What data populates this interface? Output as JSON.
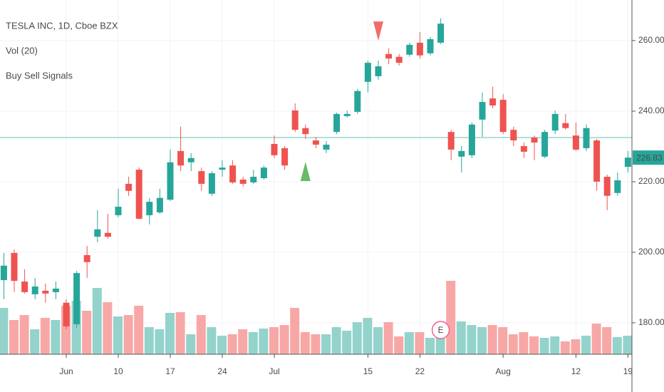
{
  "chart_data": {
    "type": "candlestick",
    "title": "TESLA INC, 1D, Cboe BZX",
    "volume_title": "Vol (20)",
    "signals_title": "Buy Sell Signals",
    "categories": [
      null,
      null,
      null,
      null,
      null,
      null,
      "Jun",
      null,
      null,
      null,
      null,
      "10",
      null,
      null,
      null,
      null,
      "17",
      null,
      null,
      null,
      null,
      "24",
      null,
      null,
      null,
      null,
      "Jul",
      null,
      null,
      null,
      null,
      null,
      null,
      null,
      null,
      "15",
      null,
      null,
      null,
      null,
      "22",
      null,
      null,
      null,
      null,
      null,
      null,
      null,
      "Aug",
      null,
      null,
      null,
      null,
      null,
      null,
      "12",
      null,
      null,
      null,
      null,
      "19"
    ],
    "open": [
      192.1,
      199.8,
      191.7,
      188.1,
      189.1,
      188.7,
      185.7,
      179.6,
      199.2,
      204.4,
      205.5,
      210.5,
      219.4,
      223.4,
      210.5,
      211.3,
      214.9,
      228.7,
      225.5,
      223.0,
      216.6,
      223.4,
      224.6,
      220.6,
      219.8,
      221.0,
      230.7,
      229.5,
      240.2,
      235.2,
      231.7,
      229.1,
      234.1,
      238.6,
      239.8,
      248.3,
      249.9,
      256.2,
      255.4,
      256.0,
      259.4,
      256.4,
      259.4,
      234.1,
      227.1,
      227.5,
      237.6,
      243.6,
      243.2,
      234.7,
      230.1,
      232.5,
      227.1,
      234.5,
      236.6,
      233.1,
      229.5,
      231.7,
      221.4,
      216.8,
      224.2
    ],
    "high": [
      199.8,
      200.8,
      195.2,
      192.7,
      191.1,
      191.7,
      186.7,
      194.7,
      201.8,
      211.9,
      210.9,
      218.0,
      221.4,
      224.0,
      215.4,
      218.0,
      229.1,
      235.6,
      228.1,
      224.0,
      223.0,
      226.1,
      226.1,
      221.4,
      223.4,
      224.6,
      233.1,
      230.1,
      242.2,
      236.2,
      232.7,
      231.5,
      239.6,
      240.2,
      246.3,
      254.3,
      254.3,
      257.8,
      256.2,
      259.4,
      262.4,
      261.0,
      266.3,
      234.7,
      230.1,
      236.8,
      245.3,
      246.9,
      244.8,
      235.6,
      231.1,
      233.1,
      234.7,
      240.2,
      239.2,
      236.8,
      236.2,
      232.1,
      222.0,
      222.6,
      228.7
    ],
    "low": [
      186.7,
      188.7,
      188.3,
      186.7,
      185.7,
      186.7,
      178.2,
      178.6,
      192.7,
      202.8,
      203.8,
      209.9,
      216.0,
      209.3,
      207.9,
      210.9,
      214.5,
      223.0,
      223.0,
      217.4,
      216.0,
      221.4,
      219.4,
      218.6,
      219.4,
      220.6,
      226.7,
      223.4,
      234.1,
      232.1,
      229.5,
      228.1,
      233.5,
      238.2,
      239.2,
      245.3,
      248.9,
      253.3,
      252.9,
      255.4,
      254.9,
      255.8,
      259.0,
      226.1,
      222.6,
      226.7,
      232.7,
      240.8,
      233.5,
      230.1,
      226.7,
      226.1,
      226.7,
      233.5,
      234.7,
      228.7,
      228.7,
      217.4,
      211.9,
      216.0,
      222.6
    ],
    "close": [
      196.2,
      191.9,
      188.7,
      190.3,
      188.3,
      189.7,
      179.0,
      194.1,
      197.2,
      206.5,
      204.4,
      212.9,
      217.4,
      209.5,
      214.3,
      215.4,
      225.5,
      224.6,
      226.7,
      219.4,
      222.4,
      224.0,
      219.8,
      219.4,
      221.4,
      224.0,
      227.5,
      224.6,
      234.7,
      233.5,
      230.5,
      230.5,
      239.2,
      239.2,
      245.7,
      253.7,
      252.7,
      254.9,
      253.7,
      258.8,
      255.8,
      260.4,
      264.8,
      229.1,
      228.7,
      236.2,
      242.6,
      241.6,
      234.1,
      231.7,
      228.5,
      231.1,
      234.1,
      239.2,
      235.2,
      229.1,
      235.2,
      220.0,
      216.0,
      220.4,
      226.83
    ],
    "volume": [
      65,
      48,
      55,
      35,
      51,
      48,
      68,
      75,
      61,
      93,
      73,
      53,
      55,
      68,
      38,
      35,
      58,
      59,
      28,
      55,
      38,
      26,
      28,
      35,
      31,
      36,
      38,
      41,
      65,
      31,
      28,
      28,
      38,
      33,
      45,
      51,
      38,
      45,
      25,
      31,
      31,
      23,
      33,
      103,
      46,
      41,
      38,
      41,
      38,
      28,
      31,
      25,
      23,
      25,
      18,
      21,
      26,
      43,
      38,
      24,
      26
    ],
    "up_color": "#26a69a",
    "down_color": "#ef5350",
    "volume_up_color": "#93d3cc",
    "volume_down_color": "#f7a8a6",
    "ylim": [
      171.1,
      271.5
    ],
    "yticks": [
      {
        "value": 180,
        "label": "180.00"
      },
      {
        "value": 200,
        "label": "200.00"
      },
      {
        "value": 220,
        "label": "220.00"
      },
      {
        "value": 240,
        "label": "240.00"
      },
      {
        "value": 260,
        "label": "260.00"
      }
    ],
    "grid": true,
    "horizontal_line": 232.5,
    "buy_signals": [
      29
    ],
    "sell_signals": [
      36
    ],
    "earnings": {
      "index": 42,
      "label": "E"
    }
  }
}
